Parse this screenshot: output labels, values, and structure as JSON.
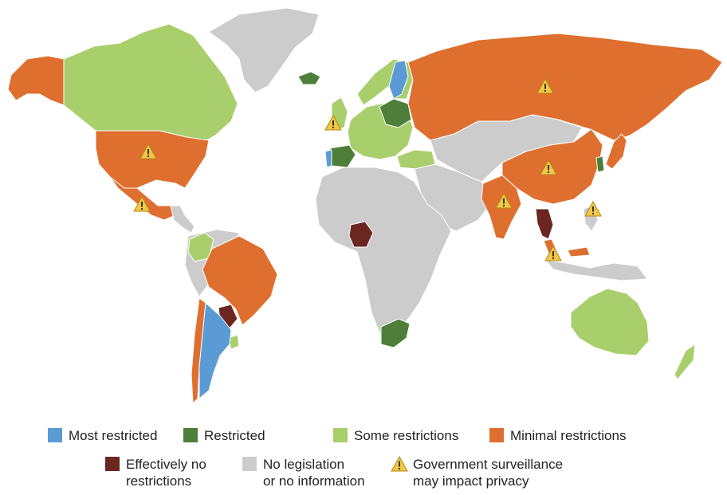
{
  "colors": {
    "most_restricted": "#5b9bd5",
    "restricted": "#4e7f3a",
    "some_restrictions": "#a9cf6c",
    "minimal_restrictions": "#de6f2f",
    "effectively_no_restrictions": "#6b2622",
    "no_legislation": "#cccccc",
    "warning_fill": "#f2c744",
    "warning_stroke": "#b08a18",
    "border": "#ffffff"
  },
  "legend": {
    "most_restricted": "Most restricted",
    "restricted": "Restricted",
    "some_restrictions": "Some restrictions",
    "minimal_restrictions": "Minimal restrictions",
    "effectively_no_restrictions": "Effectively no\nrestrictions",
    "no_legislation": "No legislation\nor no information",
    "surveillance": "Government surveillance\nmay impact privacy"
  },
  "surveillance_icon": "warning-triangle-icon",
  "regions": [
    {
      "id": "canada",
      "category": "some_restrictions"
    },
    {
      "id": "alaska",
      "category": "minimal_restrictions"
    },
    {
      "id": "greenland",
      "category": "no_legislation"
    },
    {
      "id": "usa",
      "category": "minimal_restrictions",
      "surveillance": true
    },
    {
      "id": "mexico",
      "category": "minimal_restrictions",
      "surveillance": true
    },
    {
      "id": "central-america",
      "category": "no_legislation"
    },
    {
      "id": "colombia",
      "category": "some_restrictions"
    },
    {
      "id": "brazil",
      "category": "minimal_restrictions"
    },
    {
      "id": "south-america-other",
      "category": "no_legislation"
    },
    {
      "id": "paraguay",
      "category": "effectively_no_restrictions"
    },
    {
      "id": "argentina",
      "category": "most_restricted"
    },
    {
      "id": "chile",
      "category": "minimal_restrictions"
    },
    {
      "id": "uruguay",
      "category": "some_restrictions"
    },
    {
      "id": "iceland",
      "category": "restricted"
    },
    {
      "id": "uk",
      "category": "some_restrictions",
      "surveillance": true
    },
    {
      "id": "scandinavia",
      "category": "some_restrictions"
    },
    {
      "id": "sweden",
      "category": "most_restricted"
    },
    {
      "id": "europe",
      "category": "some_restrictions"
    },
    {
      "id": "poland-region",
      "category": "restricted"
    },
    {
      "id": "spain",
      "category": "restricted"
    },
    {
      "id": "portugal",
      "category": "most_restricted"
    },
    {
      "id": "turkey",
      "category": "some_restrictions"
    },
    {
      "id": "russia",
      "category": "minimal_restrictions",
      "surveillance": true
    },
    {
      "id": "africa",
      "category": "no_legislation"
    },
    {
      "id": "nigeria",
      "category": "effectively_no_restrictions"
    },
    {
      "id": "south-africa",
      "category": "restricted"
    },
    {
      "id": "middle-east",
      "category": "no_legislation"
    },
    {
      "id": "central-asia",
      "category": "no_legislation"
    },
    {
      "id": "china",
      "category": "minimal_restrictions",
      "surveillance": true
    },
    {
      "id": "india",
      "category": "minimal_restrictions",
      "surveillance": true
    },
    {
      "id": "thailand",
      "category": "effectively_no_restrictions"
    },
    {
      "id": "malaysia",
      "category": "minimal_restrictions",
      "surveillance": true
    },
    {
      "id": "philippines",
      "category": "no_legislation",
      "surveillance": true
    },
    {
      "id": "indonesia",
      "category": "no_legislation"
    },
    {
      "id": "korea",
      "category": "restricted"
    },
    {
      "id": "japan",
      "category": "minimal_restrictions"
    },
    {
      "id": "australia",
      "category": "some_restrictions"
    },
    {
      "id": "new-zealand",
      "category": "some_restrictions"
    }
  ]
}
